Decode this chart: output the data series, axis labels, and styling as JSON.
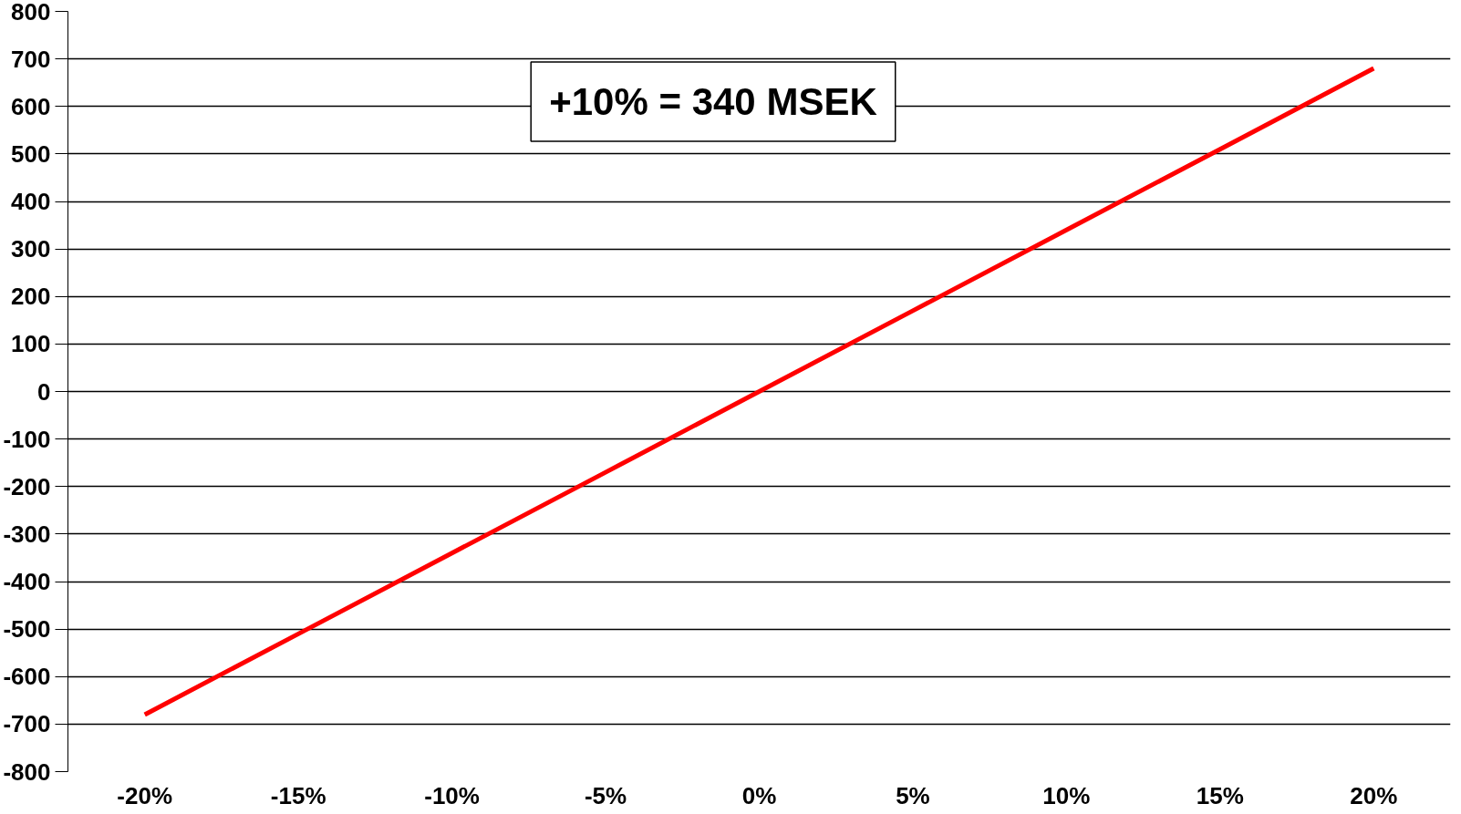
{
  "chart_data": {
    "type": "line",
    "categories": [
      "-20%",
      "-15%",
      "-10%",
      "-5%",
      "0%",
      "5%",
      "10%",
      "15%",
      "20%"
    ],
    "series": [
      {
        "color": "#ff0000",
        "values": [
          -680,
          -510,
          -340,
          -170,
          0,
          170,
          340,
          510,
          680
        ]
      }
    ],
    "ylim": [
      -800,
      800
    ],
    "yticks": [
      -800,
      -700,
      -600,
      -500,
      -400,
      -300,
      -200,
      -100,
      0,
      100,
      200,
      300,
      400,
      500,
      600,
      700,
      800
    ],
    "grid": "y",
    "marker": "none",
    "line_style": "solid",
    "annotations": [
      "+10% = 340 MSEK"
    ]
  }
}
